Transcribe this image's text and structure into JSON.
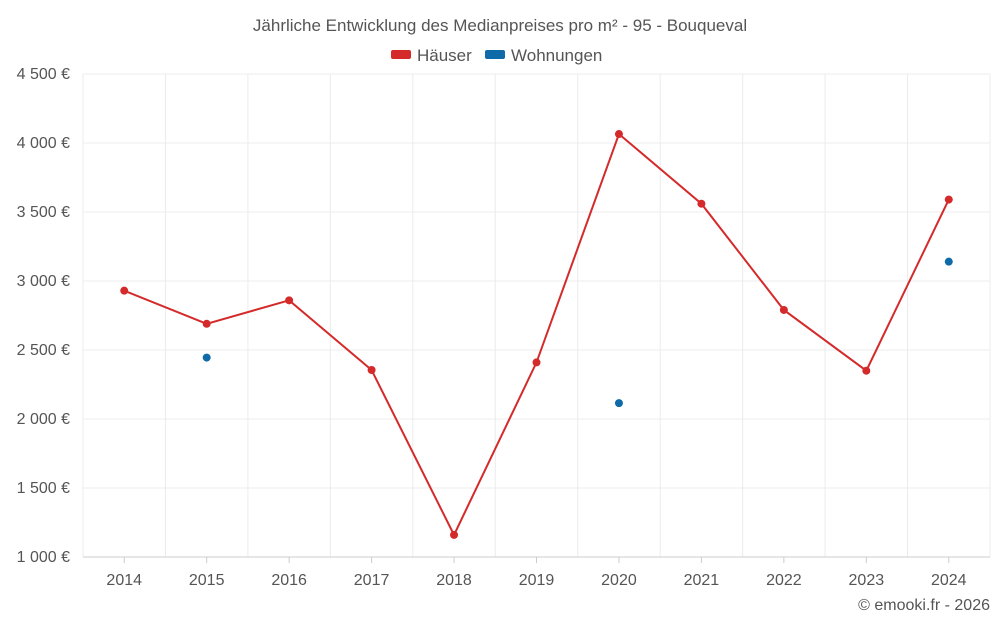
{
  "chart_data": {
    "type": "line",
    "title": "Jährliche Entwicklung des Medianpreises pro m² - 95 - Bouqueval",
    "categories": [
      "2014",
      "2015",
      "2016",
      "2017",
      "2018",
      "2019",
      "2020",
      "2021",
      "2022",
      "2023",
      "2024"
    ],
    "series": [
      {
        "name": "Häuser",
        "color": "#d42a2a",
        "values": [
          2930,
          2690,
          2860,
          2355,
          1160,
          2410,
          4065,
          3560,
          2790,
          2350,
          3590
        ],
        "mode": "line+markers"
      },
      {
        "name": "Wohnungen",
        "color": "#0f6aa8",
        "values": [
          null,
          2445,
          null,
          null,
          null,
          null,
          2115,
          null,
          null,
          null,
          3140
        ],
        "mode": "markers"
      }
    ],
    "ylim": [
      1000,
      4500
    ],
    "yticks": [
      1000,
      1500,
      2000,
      2500,
      3000,
      3500,
      4000,
      4500
    ],
    "ytick_labels": [
      "1 000 €",
      "1 500 €",
      "2 000 €",
      "2 500 €",
      "3 000 €",
      "3 500 €",
      "4 000 €",
      "4 500 €"
    ],
    "grid": true,
    "legend_position": "top-center"
  },
  "credit": "© emooki.fr - 2026"
}
